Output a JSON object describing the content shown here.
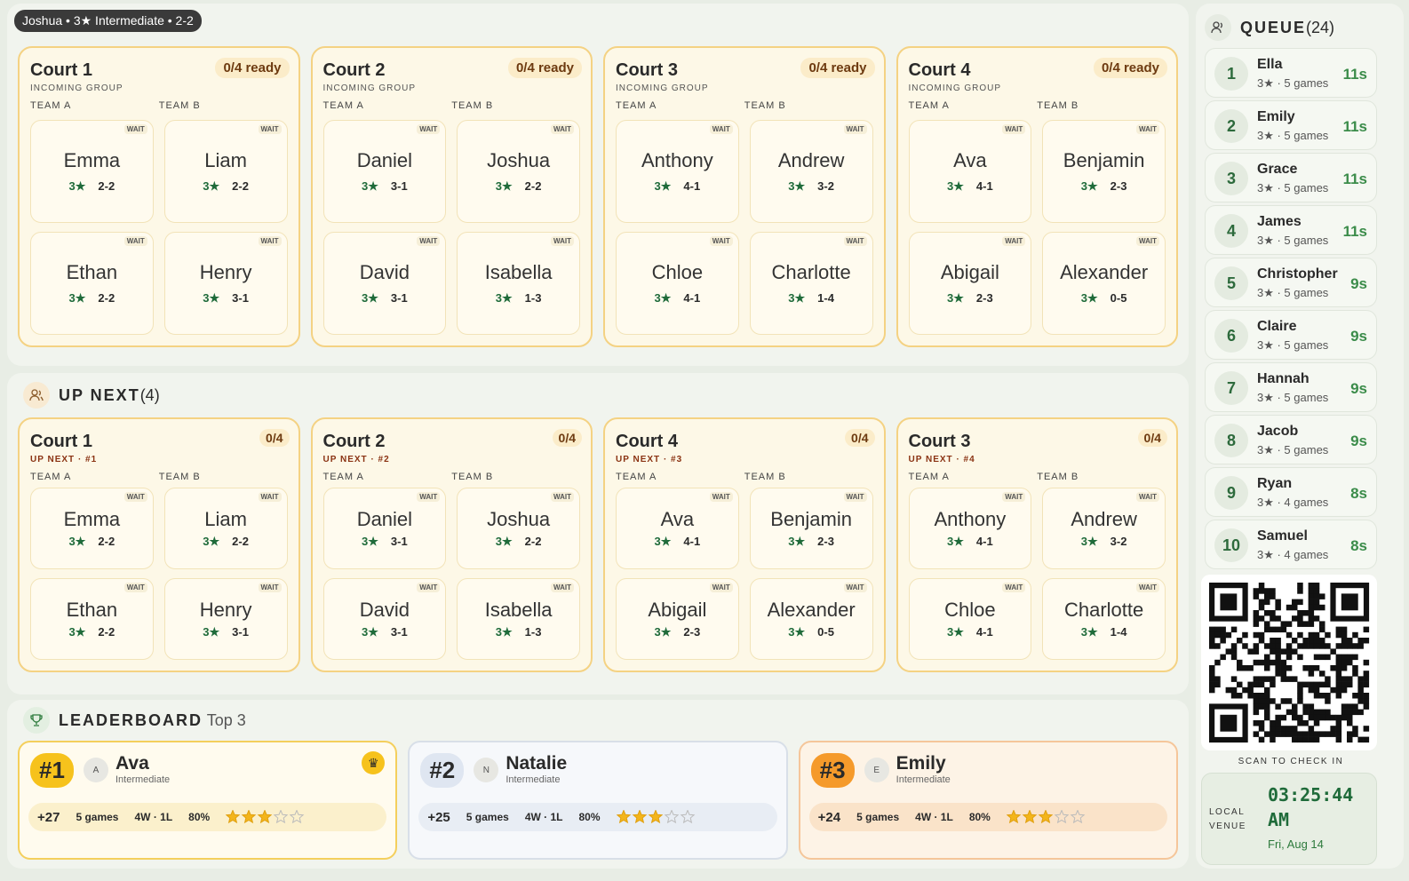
{
  "tooltip": "Joshua • 3★ Intermediate • 2-2",
  "team_labels": [
    "TEAM A",
    "TEAM B"
  ],
  "wait_label": "WAIT",
  "incoming": {
    "label": "INCOMING GROUP",
    "courts": [
      {
        "name": "Court 1",
        "status": "0/4 ready",
        "players": [
          {
            "name": "Emma",
            "rating": "3★",
            "record": "2-2"
          },
          {
            "name": "Liam",
            "rating": "3★",
            "record": "2-2"
          },
          {
            "name": "Ethan",
            "rating": "3★",
            "record": "2-2"
          },
          {
            "name": "Henry",
            "rating": "3★",
            "record": "3-1"
          }
        ]
      },
      {
        "name": "Court 2",
        "status": "0/4 ready",
        "players": [
          {
            "name": "Daniel",
            "rating": "3★",
            "record": "3-1"
          },
          {
            "name": "Joshua",
            "rating": "3★",
            "record": "2-2"
          },
          {
            "name": "David",
            "rating": "3★",
            "record": "3-1"
          },
          {
            "name": "Isabella",
            "rating": "3★",
            "record": "1-3"
          }
        ]
      },
      {
        "name": "Court 3",
        "status": "0/4 ready",
        "players": [
          {
            "name": "Anthony",
            "rating": "3★",
            "record": "4-1"
          },
          {
            "name": "Andrew",
            "rating": "3★",
            "record": "3-2"
          },
          {
            "name": "Chloe",
            "rating": "3★",
            "record": "4-1"
          },
          {
            "name": "Charlotte",
            "rating": "3★",
            "record": "1-4"
          }
        ]
      },
      {
        "name": "Court 4",
        "status": "0/4 ready",
        "players": [
          {
            "name": "Ava",
            "rating": "3★",
            "record": "4-1"
          },
          {
            "name": "Benjamin",
            "rating": "3★",
            "record": "2-3"
          },
          {
            "name": "Abigail",
            "rating": "3★",
            "record": "2-3"
          },
          {
            "name": "Alexander",
            "rating": "3★",
            "record": "0-5"
          }
        ]
      }
    ]
  },
  "up_next": {
    "title": "UP NEXT",
    "count": "(4)",
    "courts": [
      {
        "name": "Court 1",
        "status": "0/4",
        "label": "UP NEXT · #1",
        "players": [
          {
            "name": "Emma",
            "rating": "3★",
            "record": "2-2"
          },
          {
            "name": "Liam",
            "rating": "3★",
            "record": "2-2"
          },
          {
            "name": "Ethan",
            "rating": "3★",
            "record": "2-2"
          },
          {
            "name": "Henry",
            "rating": "3★",
            "record": "3-1"
          }
        ]
      },
      {
        "name": "Court 2",
        "status": "0/4",
        "label": "UP NEXT · #2",
        "players": [
          {
            "name": "Daniel",
            "rating": "3★",
            "record": "3-1"
          },
          {
            "name": "Joshua",
            "rating": "3★",
            "record": "2-2"
          },
          {
            "name": "David",
            "rating": "3★",
            "record": "3-1"
          },
          {
            "name": "Isabella",
            "rating": "3★",
            "record": "1-3"
          }
        ]
      },
      {
        "name": "Court 4",
        "status": "0/4",
        "label": "UP NEXT · #3",
        "players": [
          {
            "name": "Ava",
            "rating": "3★",
            "record": "4-1"
          },
          {
            "name": "Benjamin",
            "rating": "3★",
            "record": "2-3"
          },
          {
            "name": "Abigail",
            "rating": "3★",
            "record": "2-3"
          },
          {
            "name": "Alexander",
            "rating": "3★",
            "record": "0-5"
          }
        ]
      },
      {
        "name": "Court 3",
        "status": "0/4",
        "label": "UP NEXT · #4",
        "players": [
          {
            "name": "Anthony",
            "rating": "3★",
            "record": "4-1"
          },
          {
            "name": "Andrew",
            "rating": "3★",
            "record": "3-2"
          },
          {
            "name": "Chloe",
            "rating": "3★",
            "record": "4-1"
          },
          {
            "name": "Charlotte",
            "rating": "3★",
            "record": "1-4"
          }
        ]
      }
    ]
  },
  "leaderboard": {
    "title": "LEADERBOARD",
    "subtitle": "Top 3",
    "entries": [
      {
        "rank": "#1",
        "initial": "A",
        "name": "Ava",
        "level": "Intermediate",
        "points": "+27",
        "games": "5 games",
        "record": "4W · 1L",
        "win_rate": "80%",
        "stars": 3,
        "stars_max": 5
      },
      {
        "rank": "#2",
        "initial": "N",
        "name": "Natalie",
        "level": "Intermediate",
        "points": "+25",
        "games": "5 games",
        "record": "4W · 1L",
        "win_rate": "80%",
        "stars": 3,
        "stars_max": 5
      },
      {
        "rank": "#3",
        "initial": "E",
        "name": "Emily",
        "level": "Intermediate",
        "points": "+24",
        "games": "5 games",
        "record": "4W · 1L",
        "win_rate": "80%",
        "stars": 3,
        "stars_max": 5
      }
    ]
  },
  "queue": {
    "title": "QUEUE",
    "count": "(24)",
    "items": [
      {
        "position": 1,
        "name": "Ella",
        "detail": "3★ · 5 games",
        "wait": "11s"
      },
      {
        "position": 2,
        "name": "Emily",
        "detail": "3★ · 5 games",
        "wait": "11s"
      },
      {
        "position": 3,
        "name": "Grace",
        "detail": "3★ · 5 games",
        "wait": "11s"
      },
      {
        "position": 4,
        "name": "James",
        "detail": "3★ · 5 games",
        "wait": "11s"
      },
      {
        "position": 5,
        "name": "Christopher",
        "detail": "3★ · 5 games",
        "wait": "9s"
      },
      {
        "position": 6,
        "name": "Claire",
        "detail": "3★ · 5 games",
        "wait": "9s"
      },
      {
        "position": 7,
        "name": "Hannah",
        "detail": "3★ · 5 games",
        "wait": "9s"
      },
      {
        "position": 8,
        "name": "Jacob",
        "detail": "3★ · 5 games",
        "wait": "9s"
      },
      {
        "position": 9,
        "name": "Ryan",
        "detail": "3★ · 4 games",
        "wait": "8s"
      },
      {
        "position": 10,
        "name": "Samuel",
        "detail": "3★ · 4 games",
        "wait": "8s"
      }
    ]
  },
  "check_in": "SCAN TO CHECK IN",
  "clock": {
    "label": "LOCAL VENUE",
    "time": "03:25:44 AM",
    "date": "Fri, Aug 14"
  }
}
